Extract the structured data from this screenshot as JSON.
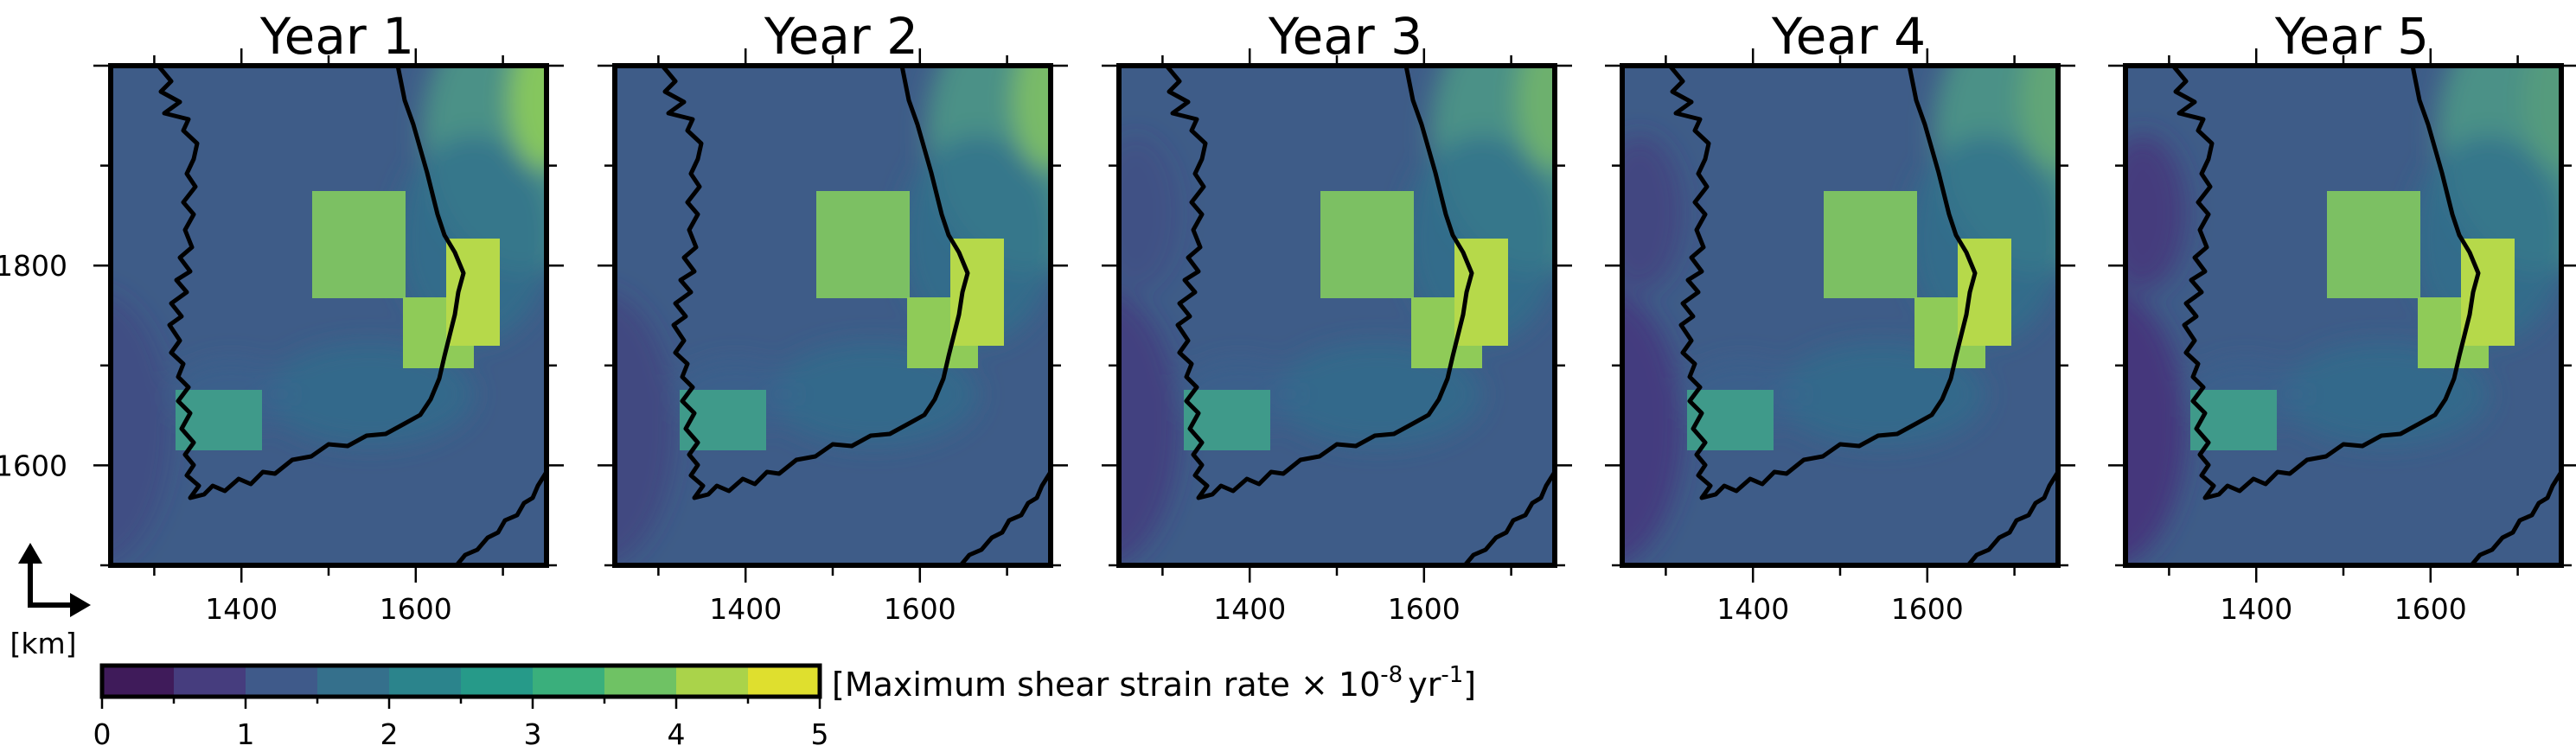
{
  "chart_data": {
    "type": "heatmap",
    "panels": [
      {
        "title": "Year 1"
      },
      {
        "title": "Year 2"
      },
      {
        "title": "Year 3"
      },
      {
        "title": "Year 4"
      },
      {
        "title": "Year 5"
      }
    ],
    "x_ticks": [
      1400,
      1600
    ],
    "y_ticks": [
      1600,
      1800
    ],
    "xlim": [
      1250,
      1750
    ],
    "ylim": [
      1500,
      2000
    ],
    "unit_label": "[km]",
    "colorbar": {
      "label_prefix": "[Maximum shear strain rate × 10",
      "label_exp": "-8",
      "label_unit": "yr",
      "label_unit_exp": "-1",
      "label_suffix": "]",
      "ticks": [
        0,
        1,
        2,
        3,
        4,
        5
      ],
      "range": [
        0,
        5
      ],
      "bins": [
        "#3f1b5a",
        "#463d7e",
        "#3f5a8a",
        "#35708c",
        "#2b848c",
        "#269a89",
        "#3aaf7c",
        "#6fc264",
        "#aad34a",
        "#dfdf2e"
      ]
    },
    "colors": {
      "background_field": "#3e5c88",
      "hot_patch_big": "#7cc063",
      "hot_patch_small": "#b6d94a",
      "low_field": "#46307a",
      "coast": "#000000"
    }
  }
}
